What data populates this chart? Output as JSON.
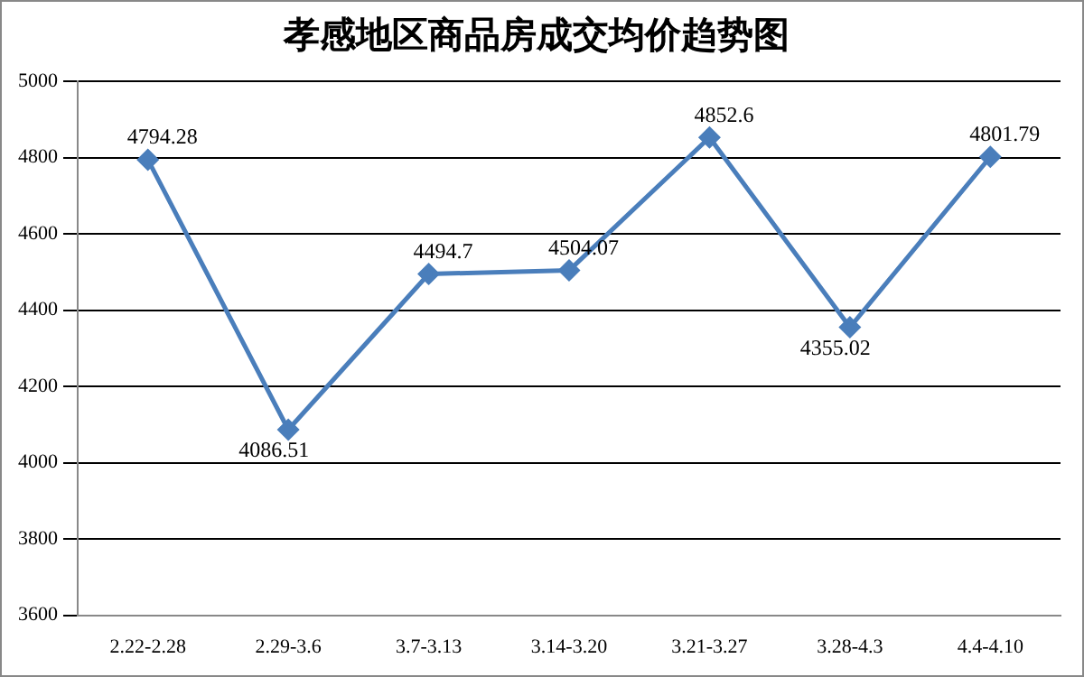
{
  "chart_data": {
    "type": "line",
    "title": "孝感地区商品房成交均价趋势图",
    "categories": [
      "2.22-2.28",
      "2.29-3.6",
      "3.7-3.13",
      "3.14-3.20",
      "3.21-3.27",
      "3.28-4.3",
      "4.4-4.10"
    ],
    "series": [
      {
        "color": "#4a7ebb",
        "values": [
          4794.28,
          4086.51,
          4494.7,
          4504.07,
          4852.6,
          4355.02,
          4801.79
        ]
      }
    ],
    "ylim": [
      3600,
      5000
    ],
    "yticks": [
      3600,
      3800,
      4000,
      4200,
      4400,
      4600,
      4800,
      5000
    ],
    "grid": "y",
    "legend": false,
    "marker": "diamond",
    "line_style": "solid",
    "data_labels": true
  }
}
